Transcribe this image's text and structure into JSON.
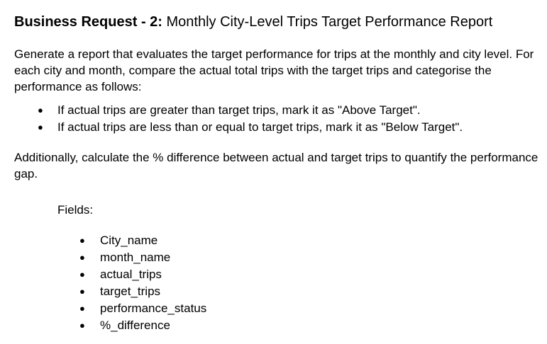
{
  "heading": {
    "prefix": "Business Request - 2:",
    "title": " Monthly City-Level Trips Target Performance Report"
  },
  "intro_paragraph": "Generate a report that evaluates the target performance for trips at the monthly and city level. For each city and month, compare the actual total trips with the target trips and categorise the performance as follows:",
  "rules": [
    "If actual trips are greater than target trips, mark it as \"Above Target\".",
    "If actual trips are less than or equal to target trips, mark it as \"Below Target\"."
  ],
  "additional_paragraph": "Additionally, calculate the % difference between actual and target trips to quantify the performance gap.",
  "fields_label": "Fields:",
  "fields": [
    "City_name",
    "month_name",
    "actual_trips",
    "target_trips",
    "performance_status",
    "%_difference"
  ],
  "bullet_glyph": "●"
}
